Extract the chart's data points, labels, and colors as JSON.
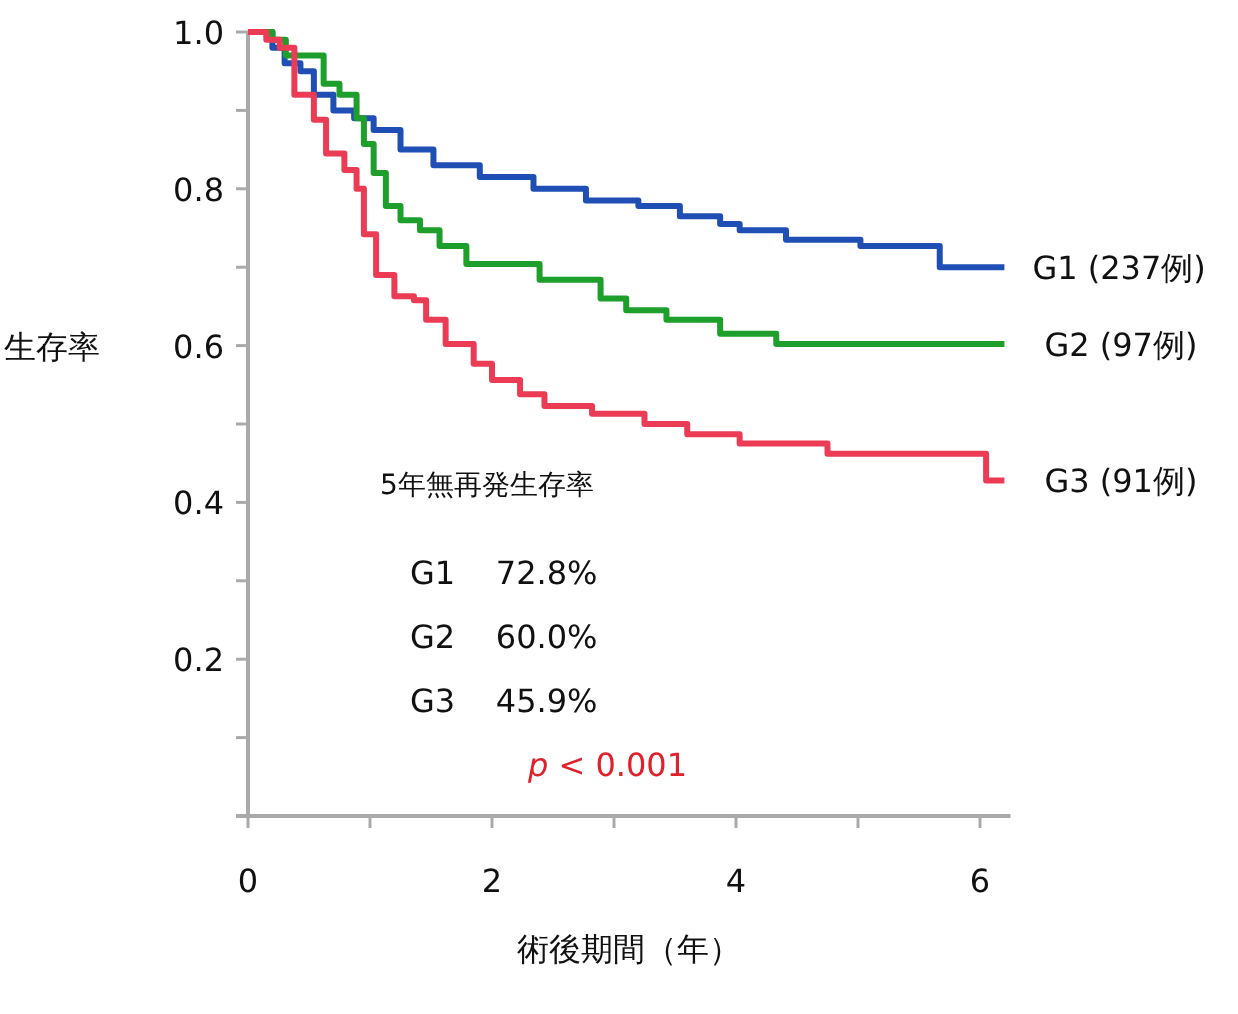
{
  "chart_data": {
    "type": "step",
    "xlabel": "術後期間（年）",
    "ylabel": "生存率",
    "xlim": [
      0,
      6.25
    ],
    "ylim": [
      0,
      1.0
    ],
    "xticks": [
      0,
      {
        "value": 1,
        "label": null
      },
      2,
      {
        "value": 3,
        "label": null
      },
      4,
      {
        "value": 5,
        "label": null
      },
      6
    ],
    "yticks": [
      {
        "value": 0.1,
        "label": null
      },
      0.2,
      {
        "value": 0.3,
        "label": null
      },
      0.4,
      {
        "value": 0.5,
        "label": null
      },
      0.6,
      {
        "value": 0.7,
        "label": null
      },
      0.8,
      {
        "value": 0.9,
        "label": null
      },
      {
        "value": 1.0,
        "label": "1.0"
      }
    ],
    "grid": false,
    "legend": false,
    "series": [
      {
        "name": "G1 (237例)",
        "color": "#1f4fb4",
        "x": [
          0,
          0.2,
          0.3,
          0.43,
          0.54,
          0.7,
          0.87,
          1.03,
          1.25,
          1.52,
          1.9,
          2.34,
          2.77,
          3.2,
          3.54,
          3.87,
          4.03,
          4.41,
          5.02,
          5.67,
          6.2
        ],
        "values": [
          1.0,
          0.98,
          0.96,
          0.95,
          0.92,
          0.9,
          0.89,
          0.875,
          0.85,
          0.83,
          0.815,
          0.8,
          0.785,
          0.778,
          0.765,
          0.755,
          0.747,
          0.735,
          0.727,
          0.7,
          0.7
        ]
      },
      {
        "name": "G2 (97例)",
        "color": "#1e9e2a",
        "x": [
          0,
          0.2,
          0.31,
          0.62,
          0.75,
          0.89,
          0.95,
          1.03,
          1.13,
          1.25,
          1.41,
          1.57,
          1.79,
          2.39,
          2.89,
          3.1,
          3.43,
          3.87,
          4.33,
          6.2
        ],
        "values": [
          1.0,
          0.99,
          0.97,
          0.934,
          0.92,
          0.89,
          0.857,
          0.82,
          0.778,
          0.76,
          0.747,
          0.727,
          0.704,
          0.684,
          0.66,
          0.645,
          0.633,
          0.615,
          0.602,
          0.602
        ]
      },
      {
        "name": "G3 (91例)",
        "color": "#ec3b55",
        "x": [
          0,
          0.15,
          0.26,
          0.38,
          0.54,
          0.64,
          0.79,
          0.89,
          0.95,
          1.05,
          1.2,
          1.36,
          1.46,
          1.62,
          1.85,
          2.0,
          2.23,
          2.43,
          2.82,
          3.25,
          3.6,
          4.03,
          4.75,
          6.05,
          6.2
        ],
        "values": [
          1.0,
          0.99,
          0.98,
          0.92,
          0.888,
          0.845,
          0.824,
          0.8,
          0.742,
          0.69,
          0.663,
          0.658,
          0.633,
          0.602,
          0.577,
          0.556,
          0.538,
          0.523,
          0.513,
          0.5,
          0.487,
          0.475,
          0.462,
          0.428,
          0.428
        ]
      }
    ],
    "annotations": [
      "5年無再発生存率",
      "G1    72.8%",
      "G2    60.0%",
      "G3    45.9%",
      "p < 0.001"
    ]
  }
}
